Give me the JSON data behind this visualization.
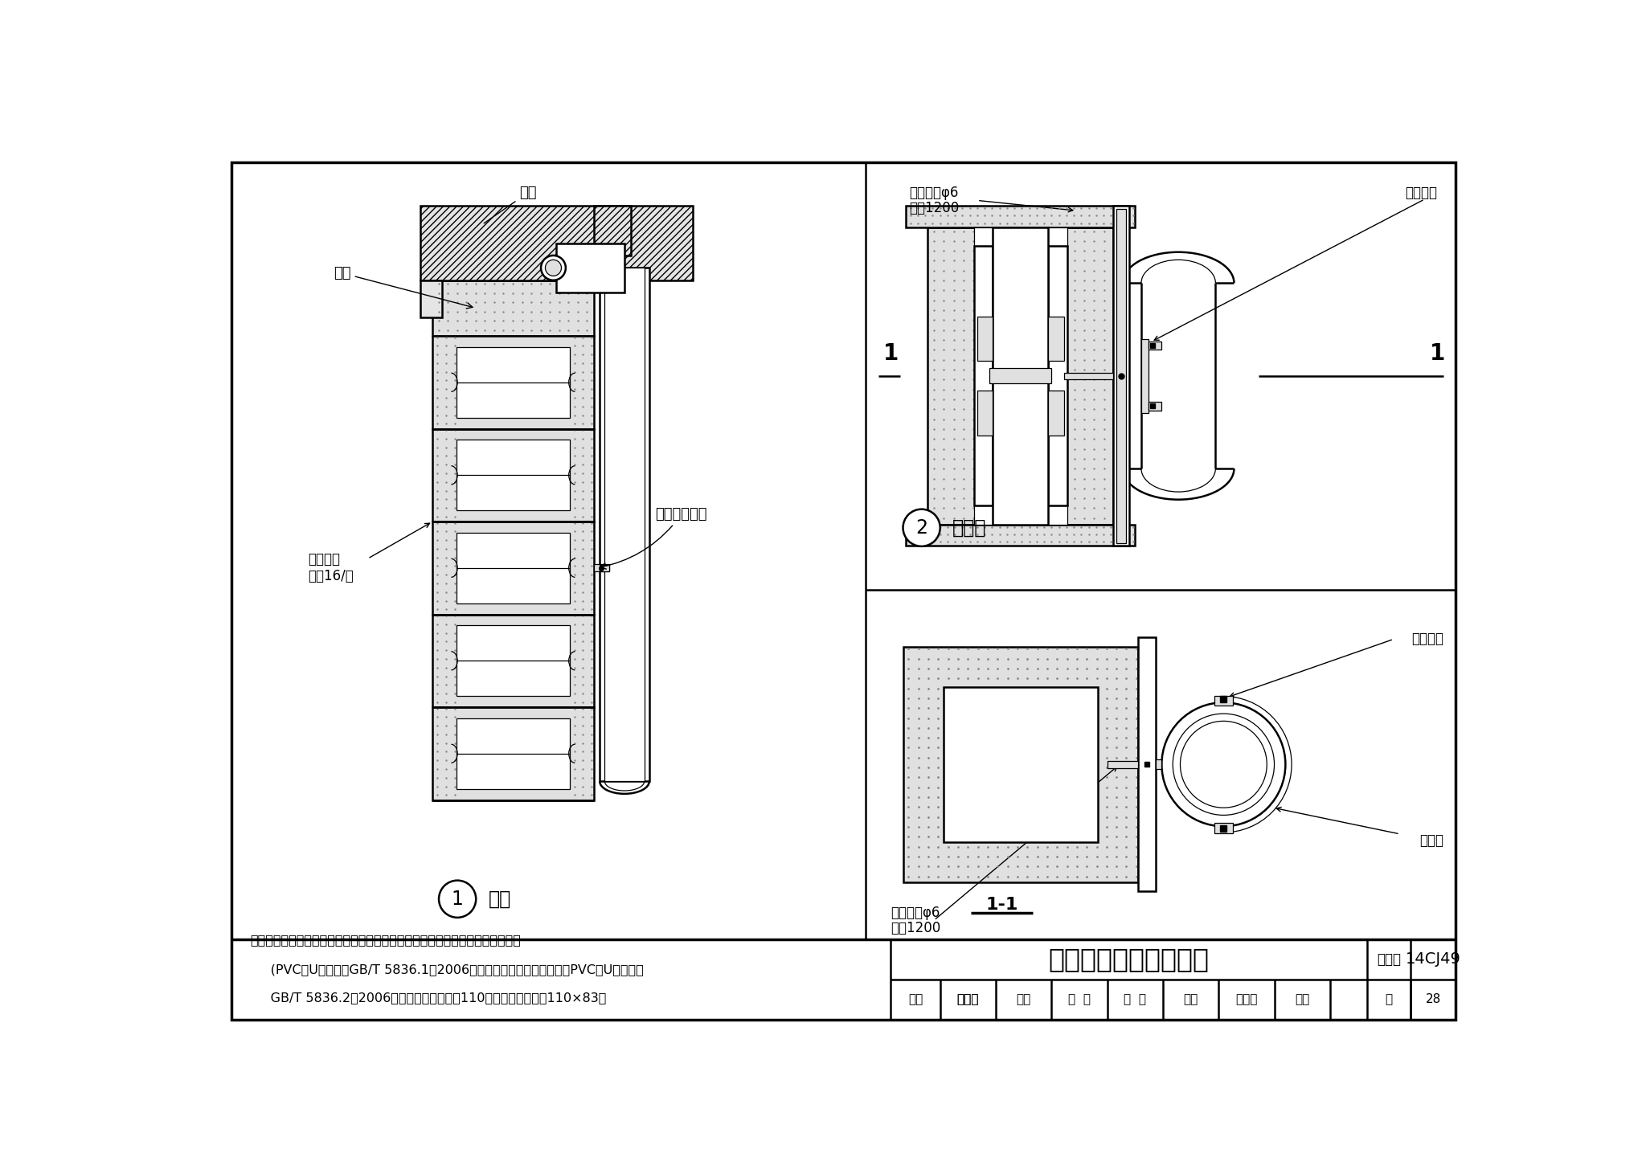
{
  "title": "管卡、雨水管安装详图",
  "atlas_num": "14CJ49",
  "page": "28",
  "note_line1": "注：水落管和管箍采用硬聚氯乙烯成品（国家行业标准《建筑排水用硬聚氯乙烯",
  "note_line2": "     (PVC－U）管材》GB/T 5836.1－2006、《建筑排水用硬聚氯乙烯（PVC－U）管件》",
  "note_line3": "     GB/T 5836.2－2006），圆管为公称外径110，方管为公称规格110×83。",
  "label_louban": "楼板",
  "label_quanliang": "圈梁",
  "label_gangsi": "铺钢丝网\n网孔16/目",
  "label_nilong": "尼龙锚栓固定",
  "label_1": "管卡",
  "label_2": "雨水管",
  "label_section": "1-1",
  "label_suliao": "塑料胀管φ6\n中距1200",
  "label_chengpin": "成品管箍",
  "label_yushui": "雨水管",
  "review": "审核",
  "reviewer": "孙笑君",
  "check": "校对",
  "checker": "郑  媛",
  "design": "设计",
  "designer": "焦黛管",
  "page_label": "页",
  "atlas_label": "图集号"
}
